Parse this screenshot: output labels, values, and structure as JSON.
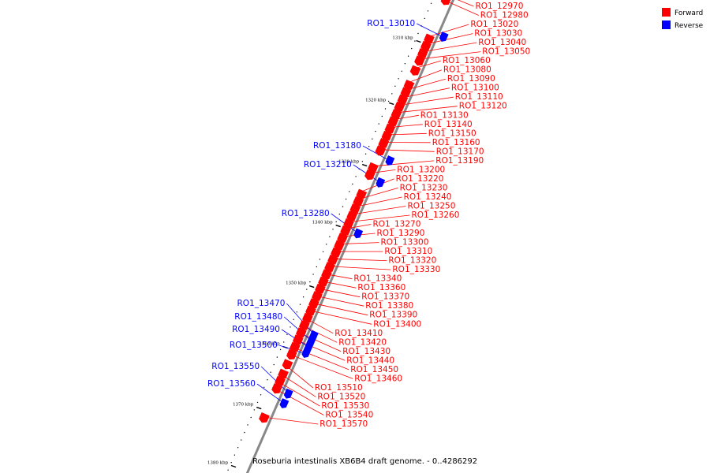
{
  "caption": "Roseburia intestinalis XB6B4 draft genome. - 0..4286292",
  "legend": [
    {
      "label": "Forward",
      "color": "#ff0000"
    },
    {
      "label": "Reverse",
      "color": "#0000ff"
    }
  ],
  "colors": {
    "forward": "#ff0000",
    "reverse": "#0000ff",
    "backbone": "#888888",
    "tick": "#000000"
  },
  "ticks": [
    "1310 kbp",
    "1320 kbp",
    "1330 kbp",
    "1340 kbp",
    "1350 kbp",
    "1360 kbp",
    "1370 kbp",
    "1380 kbp"
  ],
  "genes": [
    {
      "id": "RO1_12970",
      "strand": "forward",
      "t": 0.01
    },
    {
      "id": "RO1_12980",
      "strand": "forward",
      "t": 0.02
    },
    {
      "id": "RO1_13010",
      "strand": "reverse",
      "t": 0.085
    },
    {
      "id": "RO1_13020",
      "strand": "forward",
      "t": 0.1
    },
    {
      "id": "RO1_13030",
      "strand": "forward",
      "t": 0.115
    },
    {
      "id": "RO1_13040",
      "strand": "forward",
      "t": 0.13
    },
    {
      "id": "RO1_13050",
      "strand": "forward",
      "t": 0.145
    },
    {
      "id": "RO1_13060",
      "strand": "forward",
      "t": 0.165
    },
    {
      "id": "RO1_13080",
      "strand": "forward",
      "t": 0.195
    },
    {
      "id": "RO1_13090",
      "strand": "forward",
      "t": 0.21
    },
    {
      "id": "RO1_13100",
      "strand": "forward",
      "t": 0.225
    },
    {
      "id": "RO1_13110",
      "strand": "forward",
      "t": 0.24
    },
    {
      "id": "RO1_13120",
      "strand": "forward",
      "t": 0.255
    },
    {
      "id": "RO1_13130",
      "strand": "forward",
      "t": 0.27
    },
    {
      "id": "RO1_13140",
      "strand": "forward",
      "t": 0.285
    },
    {
      "id": "RO1_13150",
      "strand": "forward",
      "t": 0.3
    },
    {
      "id": "RO1_13160",
      "strand": "forward",
      "t": 0.315
    },
    {
      "id": "RO1_13170",
      "strand": "forward",
      "t": 0.33
    },
    {
      "id": "RO1_13180",
      "strand": "reverse",
      "t": 0.34
    },
    {
      "id": "RO1_13190",
      "strand": "forward",
      "t": 0.365
    },
    {
      "id": "RO1_13200",
      "strand": "forward",
      "t": 0.38
    },
    {
      "id": "RO1_13210",
      "strand": "reverse",
      "t": 0.385
    },
    {
      "id": "RO1_13220",
      "strand": "forward",
      "t": 0.42
    },
    {
      "id": "RO1_13230",
      "strand": "forward",
      "t": 0.435
    },
    {
      "id": "RO1_13240",
      "strand": "forward",
      "t": 0.45
    },
    {
      "id": "RO1_13250",
      "strand": "forward",
      "t": 0.465
    },
    {
      "id": "RO1_13260",
      "strand": "forward",
      "t": 0.48
    },
    {
      "id": "RO1_13270",
      "strand": "forward",
      "t": 0.495
    },
    {
      "id": "RO1_13280",
      "strand": "reverse",
      "t": 0.49
    },
    {
      "id": "RO1_13290",
      "strand": "forward",
      "t": 0.51
    },
    {
      "id": "RO1_13300",
      "strand": "forward",
      "t": 0.525
    },
    {
      "id": "RO1_13310",
      "strand": "forward",
      "t": 0.54
    },
    {
      "id": "RO1_13320",
      "strand": "forward",
      "t": 0.555
    },
    {
      "id": "RO1_13330",
      "strand": "forward",
      "t": 0.57
    },
    {
      "id": "RO1_13340",
      "strand": "forward",
      "t": 0.585
    },
    {
      "id": "RO1_13360",
      "strand": "forward",
      "t": 0.6
    },
    {
      "id": "RO1_13370",
      "strand": "forward",
      "t": 0.615
    },
    {
      "id": "RO1_13380",
      "strand": "forward",
      "t": 0.63
    },
    {
      "id": "RO1_13390",
      "strand": "forward",
      "t": 0.645
    },
    {
      "id": "RO1_13400",
      "strand": "forward",
      "t": 0.66
    },
    {
      "id": "RO1_13410",
      "strand": "forward",
      "t": 0.675
    },
    {
      "id": "RO1_13420",
      "strand": "forward",
      "t": 0.69
    },
    {
      "id": "RO1_13430",
      "strand": "forward",
      "t": 0.705
    },
    {
      "id": "RO1_13440",
      "strand": "forward",
      "t": 0.72
    },
    {
      "id": "RO1_13450",
      "strand": "forward",
      "t": 0.735
    },
    {
      "id": "RO1_13460",
      "strand": "forward",
      "t": 0.75
    },
    {
      "id": "RO1_13470",
      "strand": "reverse",
      "t": 0.7
    },
    {
      "id": "RO1_13480",
      "strand": "reverse",
      "t": 0.712
    },
    {
      "id": "RO1_13490",
      "strand": "reverse",
      "t": 0.724
    },
    {
      "id": "RO1_13500",
      "strand": "reverse",
      "t": 0.736
    },
    {
      "id": "RO1_13510",
      "strand": "forward",
      "t": 0.77
    },
    {
      "id": "RO1_13520",
      "strand": "forward",
      "t": 0.79
    },
    {
      "id": "RO1_13530",
      "strand": "forward",
      "t": 0.805
    },
    {
      "id": "RO1_13540",
      "strand": "forward",
      "t": 0.82
    },
    {
      "id": "RO1_13550",
      "strand": "reverse",
      "t": 0.82
    },
    {
      "id": "RO1_13560",
      "strand": "reverse",
      "t": 0.84
    },
    {
      "id": "RO1_13570",
      "strand": "forward",
      "t": 0.88
    }
  ]
}
